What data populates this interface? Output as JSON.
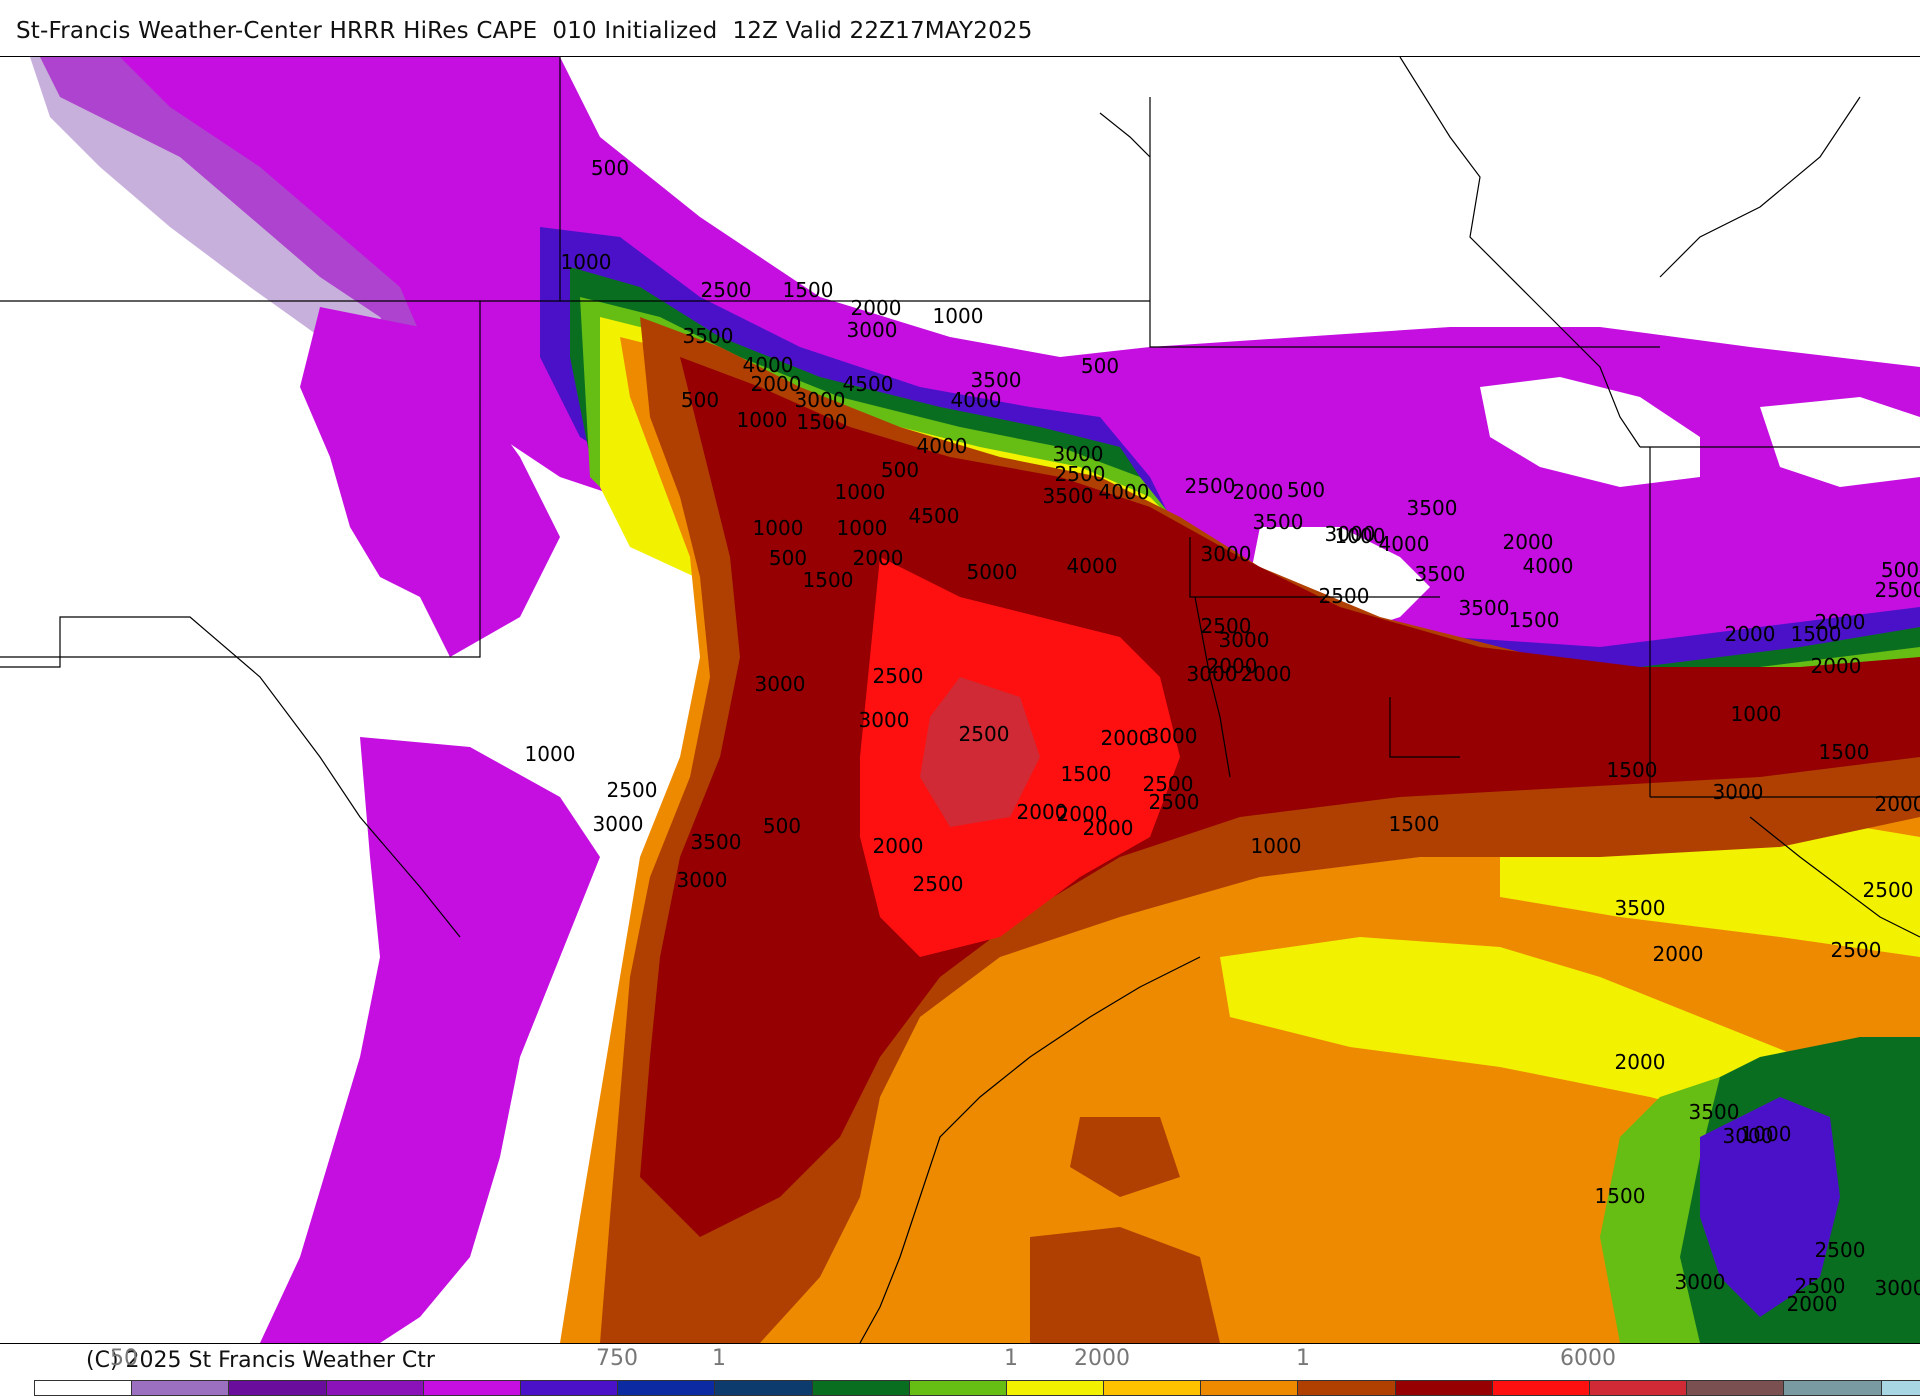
{
  "header": {
    "title": "St-Francis Weather-Center HRRR HiRes CAPE  010 Initialized  12Z Valid 22Z17MAY2025"
  },
  "footer": {
    "copyright": "(C) 2025 St Francis Weather Ctr"
  },
  "legend": {
    "ticks": [
      "50",
      "750",
      "1",
      "1",
      "2000",
      "1",
      "6000"
    ],
    "colors": [
      "#ffffff",
      "#9b70c0",
      "#6a0d9c",
      "#8b12b8",
      "#c40fe0",
      "#4a11c8",
      "#0c2aa2",
      "#0d3b6e",
      "#0a6e20",
      "#66be14",
      "#f2f200",
      "#ffc200",
      "#ee8a00",
      "#b04002",
      "#960002",
      "#ff1010",
      "#cf2a35",
      "#7a5050",
      "#7a9aa2",
      "#a8d6e2"
    ]
  },
  "map": {
    "contour_labels": [
      "500",
      "1000",
      "2500",
      "1500",
      "2000",
      "1000",
      "3500",
      "3000",
      "4000",
      "2000",
      "4500",
      "3500",
      "500",
      "500",
      "3000",
      "4000",
      "1000",
      "1500",
      "4000",
      "3000",
      "500",
      "2500",
      "1000",
      "3500",
      "4000",
      "2500",
      "2000",
      "4500",
      "1000",
      "1500",
      "1000",
      "5000",
      "4000",
      "500",
      "2000",
      "3000",
      "3500",
      "3500",
      "4000",
      "1000",
      "3500",
      "3000",
      "1500",
      "2000",
      "2500",
      "3500",
      "4000",
      "2500",
      "3000",
      "2000",
      "500",
      "2500",
      "3000",
      "3000",
      "2500",
      "2000",
      "3000",
      "3000",
      "2500",
      "2000",
      "1000",
      "2500",
      "3000",
      "500",
      "1500",
      "2000",
      "3500",
      "2000",
      "3000",
      "2500",
      "2000",
      "2500",
      "2000",
      "1000",
      "3000",
      "1500",
      "1500",
      "2000",
      "1500",
      "2000",
      "500",
      "2500",
      "2000",
      "1000",
      "1500",
      "2000",
      "2500",
      "3500",
      "2500",
      "2000",
      "1000",
      "1500",
      "3000",
      "2500",
      "2000",
      "3500",
      "3000",
      "2500",
      "3000",
      "2000"
    ]
  }
}
